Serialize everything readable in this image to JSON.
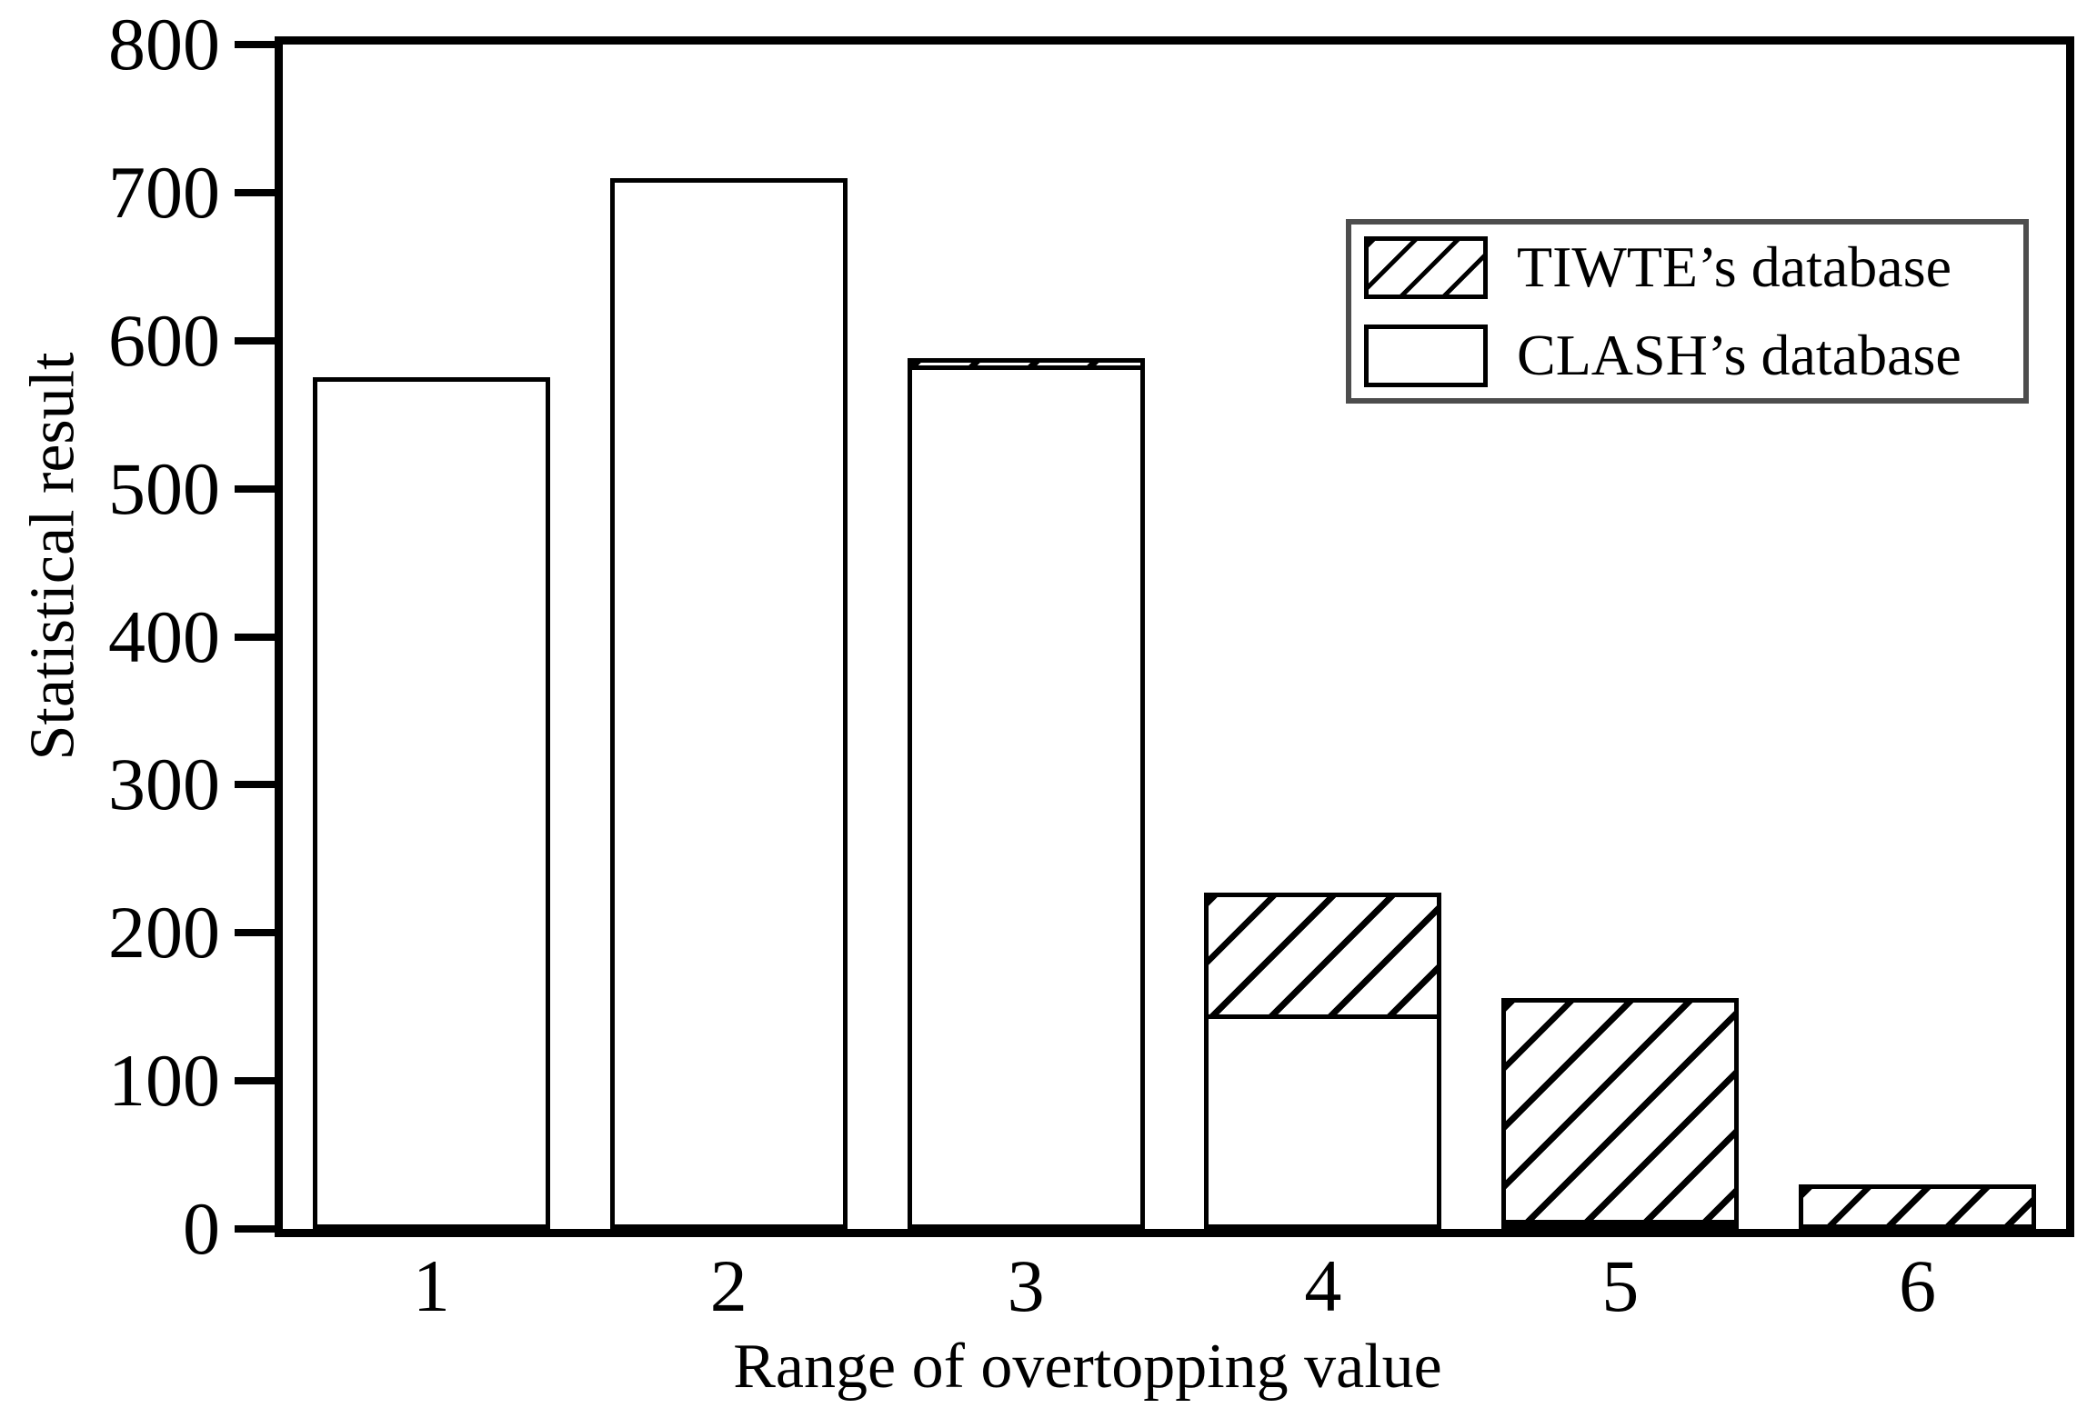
{
  "chart_data": {
    "type": "bar",
    "stacked": true,
    "title": "",
    "xlabel": "Range of overtopping value",
    "ylabel": "Statistical result",
    "categories": [
      "1",
      "2",
      "3",
      "4",
      "5",
      "6"
    ],
    "series": [
      {
        "name": "CLASH’s database",
        "swatch": "plain",
        "values": [
          575,
          710,
          583,
          145,
          4,
          0
        ]
      },
      {
        "name": "TIWTE’s database",
        "swatch": "hatched",
        "values": [
          0,
          0,
          5,
          82,
          150,
          30
        ]
      }
    ],
    "stack_order_bottom_to_top": [
      "CLASH’s database",
      "TIWTE’s database"
    ],
    "totals_per_category": [
      575,
      710,
      588,
      227,
      154,
      30
    ],
    "ylim": [
      0,
      800
    ],
    "yticks": [
      0,
      100,
      200,
      300,
      400,
      500,
      600,
      700,
      800
    ],
    "grid": "off",
    "legend": {
      "position": "top-right",
      "entries": [
        {
          "label": "TIWTE’s database",
          "swatch": "hatched"
        },
        {
          "label": "CLASH’s database",
          "swatch": "plain"
        }
      ]
    },
    "colors": {
      "background": "#ffffff",
      "bar_fill": "#ffffff",
      "bar_border": "#000000",
      "hatch": "#000000",
      "axis": "#000000",
      "text": "#000000",
      "legend_border": "#4d4d4d"
    }
  }
}
